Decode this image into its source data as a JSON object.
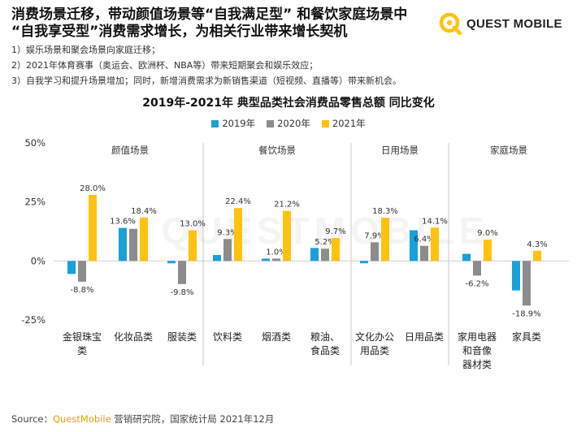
{
  "header": {
    "title_line1": "消费场景迁移，带动颜值场景等“自我满足型” 和餐饮家庭场景中",
    "title_line2": "“自我享受型”消费需求增长，为相关行业带来增长契机"
  },
  "logo": {
    "text": "QUEST MOBILE",
    "icon": "quest-mobile-logo-icon"
  },
  "bullets": [
    "1）娱乐场景和聚会场景向家庭迁移；",
    "2）2021年体育赛事（奥运会、欧洲杯、NBA等）带来短期聚会和娱乐效应；",
    "3）自我学习和提升场景增加；同时，新增消费需求为新销售渠道（短视频、直播等）带来新机会。"
  ],
  "watermark": "QUESTMOBILE",
  "source": {
    "prefix": "Source：",
    "brand": "QuestMobile",
    "suffix": " 营销研究院，国家统计局 2021年12月"
  },
  "colors": {
    "s2019": "#1aa1d6",
    "s2020": "#8c8c8c",
    "s2021": "#ffc20e",
    "accent": "#e8a300"
  },
  "chart_data": {
    "type": "bar",
    "title": "2019年-2021年 典型品类社会消费品零售总额 同比变化",
    "xlabel": "",
    "ylabel": "",
    "ylim": [
      -25,
      50
    ],
    "yticks": [
      "50%",
      "25%",
      "0%",
      "-25%"
    ],
    "grid": false,
    "legend_position": "top-center",
    "groups": [
      {
        "name": "颜值场景",
        "categories": [
          "金银珠宝类",
          "化妆品类",
          "服装类"
        ]
      },
      {
        "name": "餐饮场景",
        "categories": [
          "饮料类",
          "烟酒类",
          "粮油、食品类"
        ]
      },
      {
        "name": "日用场景",
        "categories": [
          "文化办公用品类",
          "日用品类"
        ]
      },
      {
        "name": "家庭场景",
        "categories": [
          "家用电器和音像器材类",
          "家具类"
        ]
      }
    ],
    "category_label_lines": [
      [
        "金银珠宝",
        "类"
      ],
      [
        "化妆品类"
      ],
      [
        "服装类"
      ],
      [
        "饮料类"
      ],
      [
        "烟酒类"
      ],
      [
        "粮油、",
        "食品类"
      ],
      [
        "文化办公",
        "用品类"
      ],
      [
        "日用品类"
      ],
      [
        "家用电器",
        "和音像",
        "器材类"
      ],
      [
        "家具类"
      ]
    ],
    "categories": [
      "金银珠宝类",
      "化妆品类",
      "服装类",
      "饮料类",
      "烟酒类",
      "粮油、食品类",
      "文化办公用品类",
      "日用品类",
      "家用电器和音像器材类",
      "家具类"
    ],
    "series": [
      {
        "name": "2019年",
        "values": [
          -5.5,
          14.0,
          -1.0,
          2.5,
          1.0,
          5.5,
          -1.0,
          13.0,
          3.0,
          -12.5
        ]
      },
      {
        "name": "2020年",
        "values": [
          -8.8,
          13.6,
          -9.8,
          9.3,
          1.0,
          5.2,
          7.9,
          6.4,
          -6.2,
          -18.9
        ]
      },
      {
        "name": "2021年",
        "values": [
          28.0,
          18.4,
          13.0,
          22.4,
          21.2,
          9.7,
          18.3,
          14.1,
          9.0,
          4.3
        ]
      }
    ],
    "data_labels": [
      [
        "",
        "13.6%",
        "",
        "",
        "",
        "",
        "",
        "",
        "",
        ""
      ],
      [
        "-8.8%",
        "",
        "-9.8%",
        "9.3%",
        "1.0%",
        "5.2%",
        "7.9%",
        "6.4%",
        "-6.2%",
        "-18.9%"
      ],
      [
        "28.0%",
        "18.4%",
        "13.0%",
        "22.4%",
        "21.2%",
        "9.7%",
        "18.3%",
        "14.1%",
        "9.0%",
        "4.3%"
      ]
    ]
  }
}
